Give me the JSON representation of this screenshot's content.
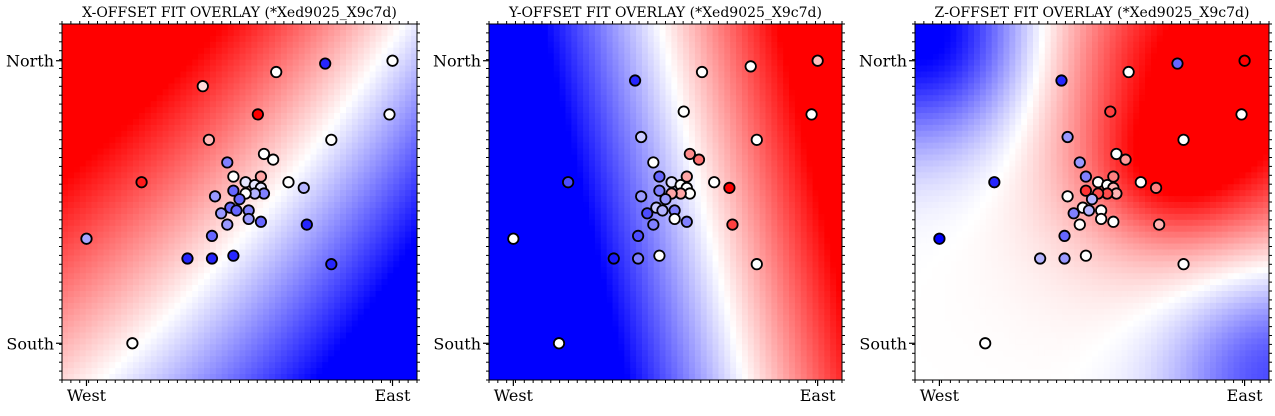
{
  "colors": {
    "neg": "#0000ff",
    "mid": "#ffffff",
    "pos": "#ff0000",
    "edge": "#000000"
  },
  "chart_data": [
    {
      "type": "scatter",
      "title": "X-OFFSET FIT OVERLAY (*Xed9025_X9c7d)",
      "xlabel": "",
      "ylabel": "",
      "x_ticks": [
        "West",
        "East"
      ],
      "y_ticks": [
        "North",
        "South"
      ],
      "xlim": [
        -0.08,
        1.08
      ],
      "ylim": [
        -0.13,
        1.13
      ],
      "grid": false,
      "background": {
        "kind": "x",
        "rx": 1.0,
        "ry": 1.0,
        "cx": 0.0,
        "cy": 0.0,
        "scale": 1.0
      },
      "points": [
        {
          "x": 0.0,
          "y": 0.37,
          "v": -0.35
        },
        {
          "x": 0.15,
          "y": 0.0,
          "v": 0.0
        },
        {
          "x": 0.18,
          "y": 0.57,
          "v": 0.9
        },
        {
          "x": 0.33,
          "y": 0.3,
          "v": -0.85
        },
        {
          "x": 0.38,
          "y": 0.91,
          "v": 0.15
        },
        {
          "x": 0.4,
          "y": 0.72,
          "v": 0.28
        },
        {
          "x": 0.56,
          "y": 0.81,
          "v": 1.0
        },
        {
          "x": 0.62,
          "y": 0.96,
          "v": 0.0
        },
        {
          "x": 0.78,
          "y": 0.99,
          "v": -0.85
        },
        {
          "x": 1.0,
          "y": 1.0,
          "v": 0.0
        },
        {
          "x": 0.99,
          "y": 0.81,
          "v": 0.0
        },
        {
          "x": 0.8,
          "y": 0.72,
          "v": 0.0
        },
        {
          "x": 0.46,
          "y": 0.64,
          "v": -0.5
        },
        {
          "x": 0.48,
          "y": 0.59,
          "v": 0.0
        },
        {
          "x": 0.58,
          "y": 0.67,
          "v": 0.0
        },
        {
          "x": 0.61,
          "y": 0.65,
          "v": 0.0
        },
        {
          "x": 0.57,
          "y": 0.59,
          "v": 0.35
        },
        {
          "x": 0.52,
          "y": 0.57,
          "v": -0.1
        },
        {
          "x": 0.55,
          "y": 0.56,
          "v": -0.1
        },
        {
          "x": 0.57,
          "y": 0.55,
          "v": -0.1
        },
        {
          "x": 0.58,
          "y": 0.53,
          "v": -0.5
        },
        {
          "x": 0.55,
          "y": 0.53,
          "v": -0.3
        },
        {
          "x": 0.52,
          "y": 0.53,
          "v": 0.0
        },
        {
          "x": 0.48,
          "y": 0.54,
          "v": -0.6
        },
        {
          "x": 0.5,
          "y": 0.51,
          "v": -0.6
        },
        {
          "x": 0.47,
          "y": 0.48,
          "v": -0.6
        },
        {
          "x": 0.42,
          "y": 0.52,
          "v": -0.4
        },
        {
          "x": 0.44,
          "y": 0.46,
          "v": -0.4
        },
        {
          "x": 0.46,
          "y": 0.42,
          "v": -0.4
        },
        {
          "x": 0.49,
          "y": 0.47,
          "v": -0.6
        },
        {
          "x": 0.53,
          "y": 0.47,
          "v": -0.5
        },
        {
          "x": 0.53,
          "y": 0.44,
          "v": -0.4
        },
        {
          "x": 0.57,
          "y": 0.43,
          "v": -0.6
        },
        {
          "x": 0.41,
          "y": 0.38,
          "v": -0.6
        },
        {
          "x": 0.41,
          "y": 0.3,
          "v": -0.85
        },
        {
          "x": 0.48,
          "y": 0.31,
          "v": -0.85
        },
        {
          "x": 0.66,
          "y": 0.57,
          "v": 0.0
        },
        {
          "x": 0.71,
          "y": 0.55,
          "v": -0.3
        },
        {
          "x": 0.72,
          "y": 0.42,
          "v": -0.85
        },
        {
          "x": 0.8,
          "y": 0.28,
          "v": -0.85
        }
      ]
    },
    {
      "type": "scatter",
      "title": "Y-OFFSET FIT OVERLAY (*Xed9025_X9c7d)",
      "xlabel": "",
      "ylabel": "",
      "x_ticks": [
        "West",
        "East"
      ],
      "y_ticks": [
        "North",
        "South"
      ],
      "xlim": [
        -0.08,
        1.08
      ],
      "ylim": [
        -0.13,
        1.13
      ],
      "grid": false,
      "background": {
        "kind": "y",
        "rx": 1.0,
        "ry": 1.0,
        "cx": 0.0,
        "cy": 0.0,
        "scale": 1.0
      },
      "points": [
        {
          "x": 0.0,
          "y": 0.37,
          "v": 0.0
        },
        {
          "x": 0.15,
          "y": 0.0,
          "v": 0.0
        },
        {
          "x": 0.18,
          "y": 0.57,
          "v": -0.7
        },
        {
          "x": 0.33,
          "y": 0.3,
          "v": -0.9
        },
        {
          "x": 0.4,
          "y": 0.93,
          "v": -0.85
        },
        {
          "x": 0.42,
          "y": 0.73,
          "v": -0.2
        },
        {
          "x": 0.56,
          "y": 0.82,
          "v": 0.0
        },
        {
          "x": 0.62,
          "y": 0.96,
          "v": 0.0
        },
        {
          "x": 0.78,
          "y": 0.98,
          "v": 0.0
        },
        {
          "x": 1.0,
          "y": 1.0,
          "v": 0.25
        },
        {
          "x": 0.98,
          "y": 0.81,
          "v": 0.0
        },
        {
          "x": 0.8,
          "y": 0.72,
          "v": 0.0
        },
        {
          "x": 0.46,
          "y": 0.64,
          "v": 0.0
        },
        {
          "x": 0.48,
          "y": 0.59,
          "v": -0.6
        },
        {
          "x": 0.58,
          "y": 0.67,
          "v": 0.45
        },
        {
          "x": 0.61,
          "y": 0.65,
          "v": 0.55
        },
        {
          "x": 0.57,
          "y": 0.59,
          "v": 0.35
        },
        {
          "x": 0.52,
          "y": 0.57,
          "v": -0.1
        },
        {
          "x": 0.55,
          "y": 0.56,
          "v": 0.0
        },
        {
          "x": 0.57,
          "y": 0.55,
          "v": 0.0
        },
        {
          "x": 0.58,
          "y": 0.53,
          "v": 0.0
        },
        {
          "x": 0.55,
          "y": 0.53,
          "v": 0.35
        },
        {
          "x": 0.52,
          "y": 0.53,
          "v": 0.35
        },
        {
          "x": 0.48,
          "y": 0.54,
          "v": -0.5
        },
        {
          "x": 0.5,
          "y": 0.51,
          "v": -0.4
        },
        {
          "x": 0.47,
          "y": 0.48,
          "v": -0.2
        },
        {
          "x": 0.42,
          "y": 0.52,
          "v": -0.4
        },
        {
          "x": 0.44,
          "y": 0.46,
          "v": -0.7
        },
        {
          "x": 0.46,
          "y": 0.42,
          "v": -0.5
        },
        {
          "x": 0.49,
          "y": 0.47,
          "v": -0.3
        },
        {
          "x": 0.53,
          "y": 0.47,
          "v": -0.5
        },
        {
          "x": 0.53,
          "y": 0.44,
          "v": 0.0
        },
        {
          "x": 0.57,
          "y": 0.43,
          "v": -0.5
        },
        {
          "x": 0.41,
          "y": 0.38,
          "v": -0.7
        },
        {
          "x": 0.41,
          "y": 0.3,
          "v": -0.5
        },
        {
          "x": 0.48,
          "y": 0.31,
          "v": 0.0
        },
        {
          "x": 0.66,
          "y": 0.57,
          "v": 0.0
        },
        {
          "x": 0.71,
          "y": 0.55,
          "v": 1.0
        },
        {
          "x": 0.72,
          "y": 0.42,
          "v": 0.75
        },
        {
          "x": 0.8,
          "y": 0.28,
          "v": 0.0
        }
      ]
    },
    {
      "type": "scatter",
      "title": "Z-OFFSET FIT OVERLAY (*Xed9025_X9c7d)",
      "xlabel": "",
      "ylabel": "",
      "x_ticks": [
        "West",
        "East"
      ],
      "y_ticks": [
        "North",
        "South"
      ],
      "xlim": [
        -0.08,
        1.08
      ],
      "ylim": [
        -0.13,
        1.13
      ],
      "grid": false,
      "background": {
        "kind": "z",
        "rx": 1.0,
        "ry": 1.0,
        "cx": 0.0,
        "cy": 0.0,
        "scale": 1.0
      },
      "points": [
        {
          "x": 0.0,
          "y": 0.37,
          "v": -1.0
        },
        {
          "x": 0.15,
          "y": 0.0,
          "v": 0.0
        },
        {
          "x": 0.18,
          "y": 0.57,
          "v": -0.85
        },
        {
          "x": 0.33,
          "y": 0.3,
          "v": -0.3
        },
        {
          "x": 0.4,
          "y": 0.93,
          "v": -0.85
        },
        {
          "x": 0.42,
          "y": 0.73,
          "v": -0.4
        },
        {
          "x": 0.56,
          "y": 0.82,
          "v": 0.75
        },
        {
          "x": 0.62,
          "y": 0.96,
          "v": 0.0
        },
        {
          "x": 0.78,
          "y": 0.99,
          "v": -0.6
        },
        {
          "x": 1.0,
          "y": 1.0,
          "v": 1.0
        },
        {
          "x": 0.99,
          "y": 0.81,
          "v": 0.0
        },
        {
          "x": 0.8,
          "y": 0.72,
          "v": 0.0
        },
        {
          "x": 0.46,
          "y": 0.64,
          "v": -0.4
        },
        {
          "x": 0.48,
          "y": 0.59,
          "v": -0.5
        },
        {
          "x": 0.58,
          "y": 0.67,
          "v": 0.0
        },
        {
          "x": 0.61,
          "y": 0.65,
          "v": 0.4
        },
        {
          "x": 0.57,
          "y": 0.59,
          "v": 0.5
        },
        {
          "x": 0.52,
          "y": 0.57,
          "v": 0.0
        },
        {
          "x": 0.55,
          "y": 0.56,
          "v": 0.0
        },
        {
          "x": 0.57,
          "y": 0.55,
          "v": 0.3
        },
        {
          "x": 0.58,
          "y": 0.53,
          "v": 0.3
        },
        {
          "x": 0.55,
          "y": 0.53,
          "v": 0.7
        },
        {
          "x": 0.52,
          "y": 0.53,
          "v": 0.7
        },
        {
          "x": 0.48,
          "y": 0.54,
          "v": 0.8
        },
        {
          "x": 0.5,
          "y": 0.51,
          "v": -0.3
        },
        {
          "x": 0.47,
          "y": 0.48,
          "v": 0.0
        },
        {
          "x": 0.42,
          "y": 0.52,
          "v": 0.0
        },
        {
          "x": 0.44,
          "y": 0.46,
          "v": -0.5
        },
        {
          "x": 0.46,
          "y": 0.42,
          "v": 0.0
        },
        {
          "x": 0.49,
          "y": 0.47,
          "v": -0.3
        },
        {
          "x": 0.53,
          "y": 0.47,
          "v": 0.0
        },
        {
          "x": 0.53,
          "y": 0.44,
          "v": 0.0
        },
        {
          "x": 0.57,
          "y": 0.43,
          "v": 0.0
        },
        {
          "x": 0.41,
          "y": 0.38,
          "v": -0.6
        },
        {
          "x": 0.41,
          "y": 0.3,
          "v": -0.4
        },
        {
          "x": 0.48,
          "y": 0.31,
          "v": 0.0
        },
        {
          "x": 0.66,
          "y": 0.57,
          "v": 0.0
        },
        {
          "x": 0.71,
          "y": 0.55,
          "v": 0.5
        },
        {
          "x": 0.72,
          "y": 0.42,
          "v": 0.3
        },
        {
          "x": 0.8,
          "y": 0.28,
          "v": 0.0
        }
      ]
    }
  ]
}
